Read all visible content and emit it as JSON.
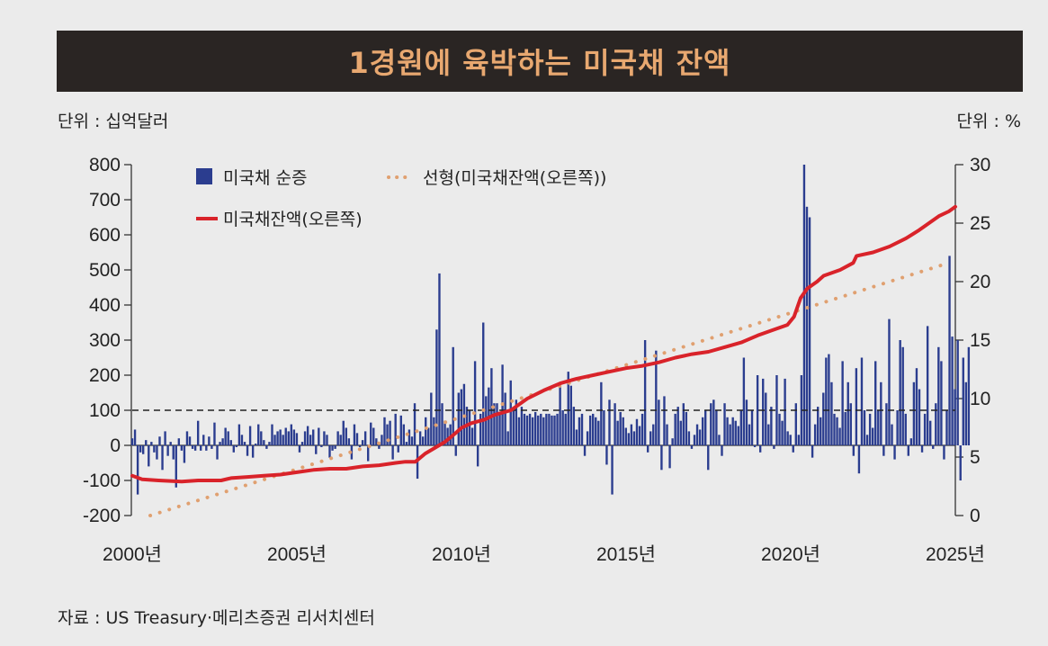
{
  "title": "1경원에 육박하는 미국채 잔액",
  "unit_left": "단위 : 십억달러",
  "unit_right": "단위 : %",
  "source": "자료 : US  Treasury·메리츠증권 리서치센터",
  "colors": {
    "bar": "#2b3d8f",
    "line": "#d9232a",
    "trend": "#e0a070",
    "title_bg": "#2a2523",
    "title_fg": "#e8a870"
  },
  "chart_data": {
    "type": "bar+line",
    "title": "1경원에 육박하는 미국채 잔액",
    "xlabel": "",
    "ylabel": "단위 : 십억달러",
    "y2label": "단위 : %",
    "xlim": [
      2000,
      2025
    ],
    "ylim": [
      -200,
      800
    ],
    "y2lim": [
      0,
      30
    ],
    "xticks": [
      2000,
      2005,
      2010,
      2015,
      2020,
      2025
    ],
    "xtick_labels": [
      "2000년",
      "2005년",
      "2010년",
      "2015년",
      "2020년",
      "2025년"
    ],
    "yticks": [
      -200,
      -100,
      0,
      100,
      200,
      300,
      400,
      500,
      600,
      700,
      800
    ],
    "ytick_labels": [
      "-200",
      "-100",
      "0",
      "100",
      "200",
      "300",
      "400",
      "500",
      "600",
      "700",
      "800"
    ],
    "y2ticks": [
      0,
      5,
      10,
      15,
      20,
      25,
      30
    ],
    "y2tick_labels": [
      "0",
      "5",
      "10",
      "15",
      "20",
      "25",
      "30"
    ],
    "reference_line": {
      "axis": "left",
      "value": 100,
      "style": "dashed"
    },
    "legend": [
      {
        "label": "미국채 순증",
        "kind": "bar"
      },
      {
        "label": "선형(미국채잔액(오른쪽))",
        "kind": "dotted"
      },
      {
        "label": "미국채잔액(오른쪽)",
        "kind": "line"
      }
    ],
    "series": [
      {
        "name": "미국채 순증",
        "kind": "bar",
        "axis": "left",
        "period": "monthly",
        "x_start": 2000.0,
        "x_step": 0.0833,
        "values": [
          20,
          45,
          -140,
          -20,
          -25,
          15,
          -60,
          10,
          -20,
          -40,
          25,
          -70,
          40,
          -30,
          10,
          -40,
          -120,
          20,
          -15,
          -50,
          40,
          25,
          -10,
          -15,
          70,
          -15,
          30,
          -15,
          25,
          -10,
          65,
          -40,
          10,
          20,
          50,
          40,
          15,
          -20,
          -5,
          60,
          30,
          10,
          -30,
          55,
          -35,
          5,
          60,
          40,
          15,
          -10,
          10,
          60,
          30,
          40,
          45,
          30,
          50,
          40,
          60,
          45,
          35,
          -20,
          10,
          40,
          55,
          30,
          45,
          -25,
          50,
          -5,
          40,
          30,
          -35,
          -15,
          -10,
          40,
          30,
          70,
          50,
          20,
          -40,
          60,
          35,
          -5,
          15,
          40,
          -45,
          65,
          50,
          20,
          -10,
          30,
          80,
          60,
          70,
          -40,
          90,
          -20,
          85,
          60,
          10,
          45,
          25,
          120,
          -95,
          40,
          25,
          80,
          50,
          150,
          80,
          330,
          490,
          120,
          70,
          50,
          60,
          280,
          -30,
          150,
          160,
          175,
          110,
          100,
          50,
          240,
          -60,
          90,
          350,
          140,
          165,
          220,
          120,
          120,
          95,
          230,
          150,
          40,
          185,
          100,
          130,
          80,
          110,
          90,
          85,
          90,
          80,
          95,
          85,
          90,
          80,
          90,
          90,
          85,
          85,
          90,
          180,
          100,
          90,
          210,
          170,
          110,
          45,
          80,
          90,
          -30,
          40,
          85,
          90,
          80,
          70,
          180,
          100,
          -55,
          130,
          -140,
          120,
          70,
          95,
          80,
          50,
          35,
          60,
          40,
          75,
          55,
          90,
          300,
          -20,
          40,
          60,
          270,
          130,
          -70,
          140,
          60,
          -65,
          20,
          90,
          110,
          70,
          120,
          95,
          40,
          -10,
          30,
          60,
          45,
          80,
          100,
          -70,
          120,
          130,
          100,
          30,
          -30,
          120,
          80,
          60,
          80,
          70,
          55,
          100,
          250,
          130,
          60,
          100,
          -5,
          200,
          -20,
          190,
          150,
          60,
          110,
          -10,
          200,
          90,
          70,
          190,
          40,
          30,
          -20,
          120,
          30,
          200,
          800,
          680,
          650,
          -35,
          60,
          110,
          80,
          150,
          250,
          260,
          180,
          90,
          80,
          50,
          240,
          95,
          180,
          120,
          -30,
          220,
          -80,
          250,
          100,
          30,
          90,
          50,
          240,
          100,
          180,
          -30,
          120,
          360,
          60,
          -40,
          100,
          300,
          280,
          90,
          -30,
          20,
          180,
          220,
          160,
          -20,
          90,
          340,
          70,
          -10,
          120,
          280,
          240,
          -40,
          100,
          540,
          310,
          160,
          300,
          -100,
          250,
          180,
          280
        ]
      },
      {
        "name": "미국채잔액(오른쪽)",
        "kind": "line",
        "axis": "right",
        "points": [
          [
            2000.0,
            3.4
          ],
          [
            2000.3,
            3.1
          ],
          [
            2000.8,
            3.0
          ],
          [
            2001.5,
            2.9
          ],
          [
            2002.0,
            3.0
          ],
          [
            2002.7,
            3.0
          ],
          [
            2003.0,
            3.2
          ],
          [
            2003.5,
            3.3
          ],
          [
            2004.0,
            3.4
          ],
          [
            2004.5,
            3.5
          ],
          [
            2005.0,
            3.7
          ],
          [
            2005.5,
            3.9
          ],
          [
            2006.0,
            4.0
          ],
          [
            2006.5,
            4.0
          ],
          [
            2007.0,
            4.2
          ],
          [
            2007.5,
            4.3
          ],
          [
            2008.0,
            4.5
          ],
          [
            2008.3,
            4.6
          ],
          [
            2008.6,
            4.6
          ],
          [
            2008.9,
            5.3
          ],
          [
            2009.2,
            5.8
          ],
          [
            2009.5,
            6.3
          ],
          [
            2009.8,
            7.0
          ],
          [
            2010.0,
            7.5
          ],
          [
            2010.3,
            7.9
          ],
          [
            2010.7,
            8.2
          ],
          [
            2011.0,
            8.6
          ],
          [
            2011.5,
            9.0
          ],
          [
            2012.0,
            10.0
          ],
          [
            2012.5,
            10.7
          ],
          [
            2013.0,
            11.3
          ],
          [
            2013.5,
            11.7
          ],
          [
            2014.0,
            12.0
          ],
          [
            2014.5,
            12.3
          ],
          [
            2015.0,
            12.6
          ],
          [
            2015.5,
            12.8
          ],
          [
            2016.0,
            13.1
          ],
          [
            2016.5,
            13.5
          ],
          [
            2017.0,
            13.8
          ],
          [
            2017.5,
            14.0
          ],
          [
            2018.0,
            14.4
          ],
          [
            2018.5,
            14.8
          ],
          [
            2019.0,
            15.4
          ],
          [
            2019.5,
            15.9
          ],
          [
            2019.9,
            16.3
          ],
          [
            2020.1,
            17.0
          ],
          [
            2020.3,
            18.6
          ],
          [
            2020.5,
            19.4
          ],
          [
            2020.8,
            20.0
          ],
          [
            2021.0,
            20.5
          ],
          [
            2021.5,
            21.0
          ],
          [
            2021.9,
            21.6
          ],
          [
            2022.0,
            22.2
          ],
          [
            2022.5,
            22.5
          ],
          [
            2023.0,
            23.0
          ],
          [
            2023.5,
            23.7
          ],
          [
            2023.9,
            24.4
          ],
          [
            2024.2,
            25.0
          ],
          [
            2024.5,
            25.6
          ],
          [
            2024.8,
            26.0
          ],
          [
            2025.0,
            26.4
          ]
        ]
      },
      {
        "name": "선형(미국채잔액(오른쪽))",
        "kind": "dotted",
        "axis": "right",
        "points": [
          [
            2000.0,
            0.0
          ],
          [
            2024.8,
            21.6
          ]
        ]
      }
    ]
  }
}
